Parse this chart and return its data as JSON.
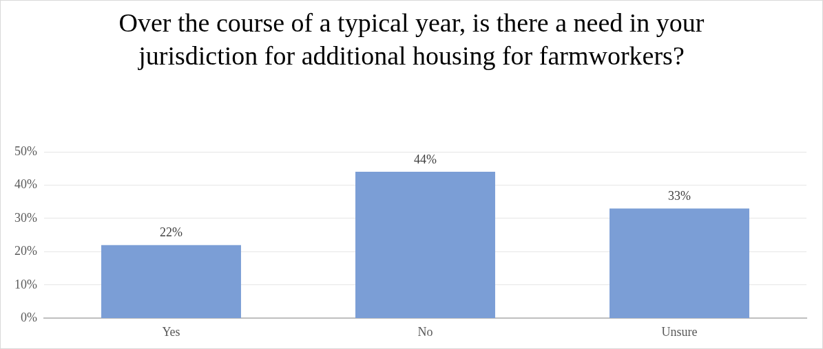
{
  "chart_data": {
    "type": "bar",
    "title": "Over the course of a typical year, is there a need in your jurisdiction for additional housing for farmworkers?",
    "categories": [
      "Yes",
      "No",
      "Unsure"
    ],
    "values": [
      22,
      44,
      33
    ],
    "value_labels": [
      "22%",
      "44%",
      "33%"
    ],
    "color": "#7b9ed6",
    "ylim": [
      0,
      50
    ],
    "yticks": [
      {
        "value": 0,
        "label": "0%"
      },
      {
        "value": 10,
        "label": "10%"
      },
      {
        "value": 20,
        "label": "20%"
      },
      {
        "value": 30,
        "label": "30%"
      },
      {
        "value": 40,
        "label": "40%"
      },
      {
        "value": 50,
        "label": "50%"
      }
    ],
    "grid": "y",
    "legend": false
  }
}
